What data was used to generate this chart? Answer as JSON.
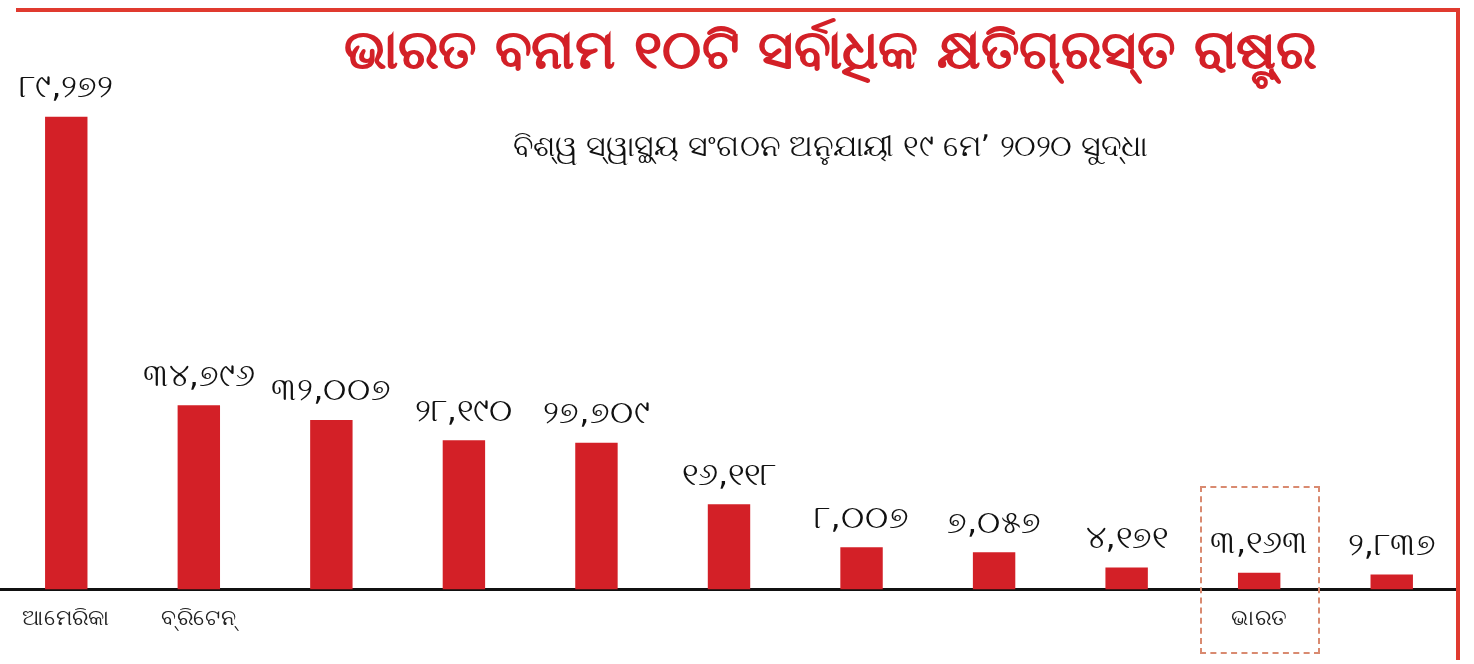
{
  "chart_data": {
    "type": "bar",
    "title": "ଭାରତ ବନାମ ୧୦ଟି ସର୍ବାଧିକ କ୍ଷତିଗ୍ରସ୍ତ ରାଷ୍ଟ୍ର",
    "subtitle": "ବିଶ୍ୱ ସ୍ୱାସ୍ଥ୍ୟ ସଂଗଠନ ଅନୁଯାୟୀ ୧୯ ମେ’ ୨୦୨୦ ସୁଦ୍ଧା",
    "categories": [
      "ଆମେରିକା",
      "ବ୍ରିଟେନ୍",
      null,
      null,
      null,
      null,
      null,
      null,
      null,
      "ଭାରତ",
      null
    ],
    "values": [
      89272,
      34796,
      32007,
      28190,
      27709,
      16118,
      8007,
      7057,
      4171,
      3163,
      2837
    ],
    "value_labels": [
      "୮୯,୨୭୨",
      "୩୪,୭୯୬",
      "୩୨,୦୦୭",
      "୨୮,୧୯୦",
      "୨୭,୭୦୯",
      "୧୬,୧୧୮",
      "୮,୦୦୭",
      "୭,୦୫୭",
      "୪,୧୭୧",
      "୩,୧୬୩",
      "୨,୮୩୭"
    ],
    "color": "#d32027",
    "tick_labels": "x",
    "grid": false,
    "legend": false
  }
}
